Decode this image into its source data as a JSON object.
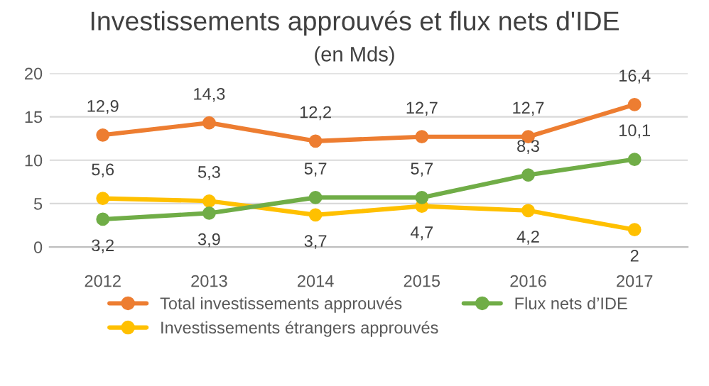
{
  "chart_data": {
    "type": "line",
    "title": "Investissements approuvés et flux nets d'IDE",
    "subtitle": "(en Mds)",
    "categories": [
      "2012",
      "2013",
      "2014",
      "2015",
      "2016",
      "2017"
    ],
    "series": [
      {
        "name": "Total investissements approuvés",
        "color": "#ed7d31",
        "values": [
          12.9,
          14.3,
          12.2,
          12.7,
          12.7,
          16.4
        ],
        "value_labels": [
          "12,9",
          "14,3",
          "12,2",
          "12,7",
          "12,7",
          "16,4"
        ]
      },
      {
        "name": "Investissements étrangers approuvés",
        "color": "#ffc000",
        "values": [
          5.6,
          5.3,
          3.7,
          4.7,
          4.2,
          2
        ],
        "value_labels": [
          "5,6",
          "5,3",
          "3,7",
          "4,7",
          "4,2",
          "2"
        ]
      },
      {
        "name": "Flux nets d’IDE",
        "color": "#70ad47",
        "values": [
          3.2,
          3.9,
          5.7,
          5.7,
          8.3,
          10.1
        ],
        "value_labels": [
          "3,2",
          "3,9",
          "5,7",
          "5,7",
          "8,3",
          "10,1"
        ]
      }
    ],
    "ylim": [
      0,
      20
    ],
    "yticks": [
      0,
      5,
      10,
      15,
      20
    ],
    "grid": "y",
    "legend": "bottom",
    "marker": "circle",
    "line_style": "solid"
  }
}
